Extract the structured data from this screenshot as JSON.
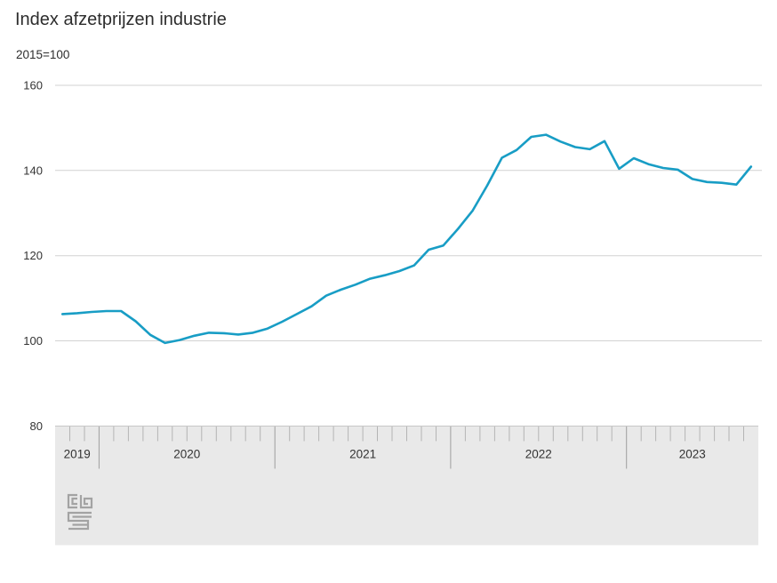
{
  "chart_data": {
    "type": "line",
    "title": "Index afzetprijzen industrie",
    "subtitle": "2015=100",
    "y_axis": {
      "ticks": [
        160,
        140,
        120,
        100,
        80
      ],
      "range": [
        80,
        160
      ],
      "gridlines": true
    },
    "x_axis": {
      "start_month": "2019-10",
      "end_month": "2023-09",
      "years": [
        {
          "label": "2019",
          "months": 3
        },
        {
          "label": "2020",
          "months": 12
        },
        {
          "label": "2021",
          "months": 12
        },
        {
          "label": "2022",
          "months": 12
        },
        {
          "label": "2023",
          "months": 9
        }
      ]
    },
    "series": [
      {
        "name": "Index afzetprijzen industrie (2015=100)",
        "color": "#189dc5",
        "values": [
          106.3,
          106.5,
          106.8,
          107.0,
          107.0,
          104.6,
          101.4,
          99.5,
          100.2,
          101.2,
          101.9,
          101.8,
          101.5,
          101.9,
          102.9,
          104.5,
          106.3,
          108.1,
          110.6,
          112.0,
          113.2,
          114.6,
          115.4,
          116.4,
          117.7,
          121.4,
          122.4,
          126.3,
          130.6,
          136.5,
          143.0,
          144.8,
          147.9,
          148.4,
          146.8,
          145.5,
          145.0,
          146.9,
          140.4,
          142.9,
          141.5,
          140.6,
          140.2,
          138.0,
          137.3,
          137.1,
          136.7,
          140.9
        ]
      }
    ],
    "legend": {
      "visible": false
    },
    "branding": {
      "logo": "cbs-logo",
      "color": "#a3a3a3"
    }
  },
  "colors": {
    "gridline": "#d2d2d2",
    "axis_band": "#e9e9e9",
    "band_border": "#c6c6c6",
    "minor_tick": "#b4b4b4",
    "year_divider": "#9e9e9e",
    "text": "#333333"
  }
}
